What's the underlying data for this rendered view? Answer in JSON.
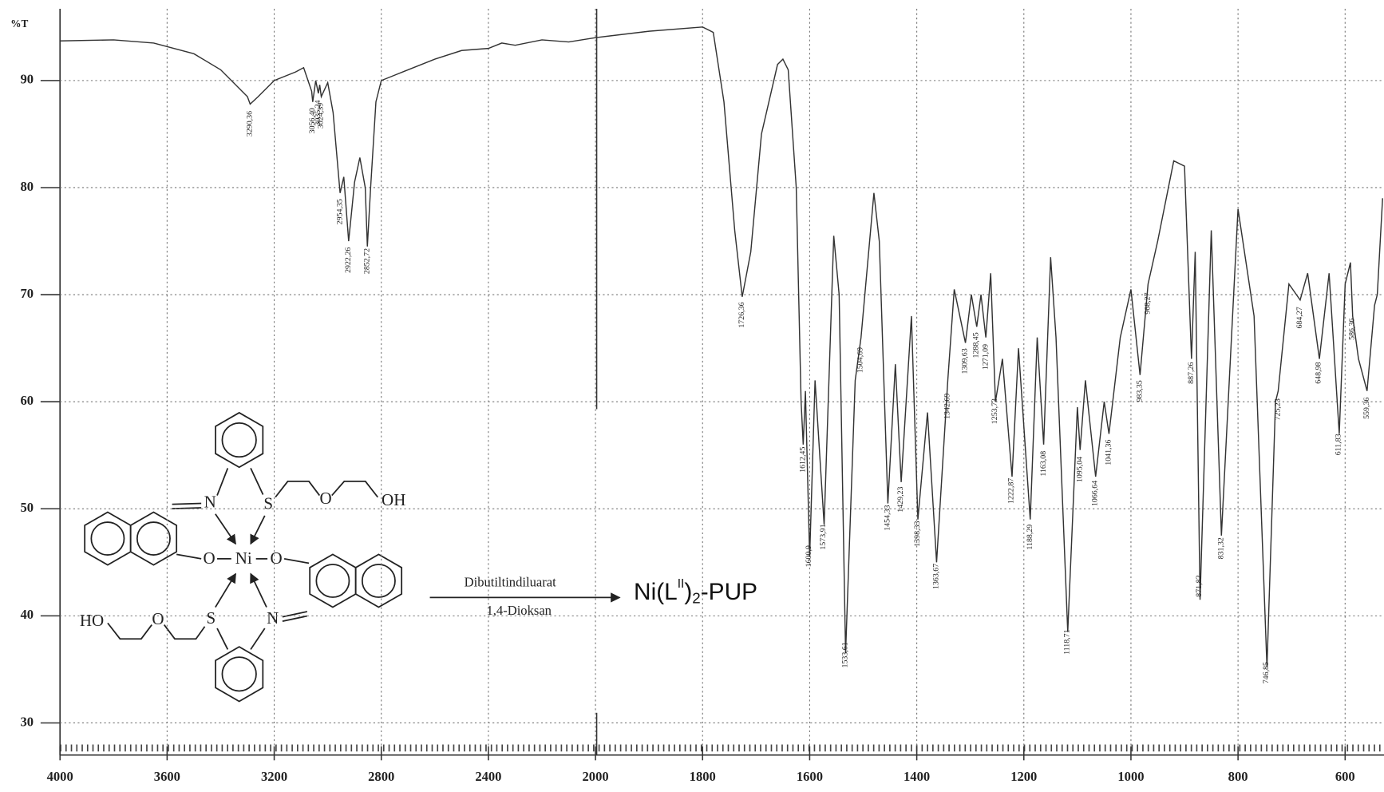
{
  "chart_data": {
    "type": "line",
    "ylabel": "%T",
    "xlim": [
      4000,
      525
    ],
    "xticks": [
      4000,
      3600,
      3200,
      2800,
      2400,
      2000,
      1800,
      1600,
      1400,
      1200,
      1000,
      800,
      600
    ],
    "ylim": [
      27,
      96.7
    ],
    "yticks": [
      30,
      40,
      50,
      60,
      70,
      80,
      90
    ],
    "grid": true,
    "color": "#333333",
    "x": [
      4000,
      3800,
      3650,
      3500,
      3400,
      3300,
      3290,
      3260,
      3200,
      3120,
      3090,
      3060,
      3056,
      3045,
      3035,
      3030,
      3024,
      3000,
      2980,
      2954,
      2940,
      2922,
      2900,
      2880,
      2860,
      2852,
      2840,
      2820,
      2800,
      2750,
      2700,
      2600,
      2500,
      2400,
      2350,
      2300,
      2200,
      2100,
      2000,
      1900,
      1800,
      1780,
      1760,
      1740,
      1726,
      1710,
      1690,
      1660,
      1650,
      1640,
      1625,
      1616,
      1612,
      1608,
      1600,
      1590,
      1573,
      1555,
      1545,
      1533,
      1515,
      1504,
      1480,
      1470,
      1454,
      1440,
      1429,
      1410,
      1398,
      1380,
      1363,
      1342,
      1330,
      1309,
      1298,
      1288,
      1280,
      1271,
      1262,
      1253,
      1240,
      1222,
      1210,
      1188,
      1175,
      1163,
      1150,
      1140,
      1118,
      1100,
      1095,
      1085,
      1066,
      1050,
      1041,
      1020,
      1000,
      983,
      968,
      950,
      920,
      900,
      887,
      880,
      871,
      850,
      831,
      800,
      770,
      746,
      730,
      725,
      705,
      684,
      670,
      648,
      630,
      611,
      600,
      590,
      586,
      575,
      559,
      545,
      540,
      530
    ],
    "values": [
      93.7,
      93.8,
      93.5,
      92.5,
      91,
      88.5,
      87.8,
      88.5,
      90,
      90.8,
      91.2,
      89,
      88,
      90,
      88.8,
      89.6,
      88.5,
      89.8,
      87,
      79.5,
      81,
      75,
      80.5,
      82.8,
      80,
      74.5,
      80,
      88,
      90,
      90.5,
      91,
      92,
      92.8,
      93,
      93.5,
      93.3,
      93.8,
      93.6,
      94,
      94.6,
      95,
      94.5,
      88,
      76,
      69.8,
      74,
      85,
      91.5,
      92,
      91,
      80,
      60,
      56,
      61,
      45.5,
      62,
      48.5,
      75.5,
      70,
      36.5,
      62,
      66,
      79.5,
      75,
      50.5,
      63.5,
      52.5,
      68,
      49,
      59,
      45,
      62,
      70.5,
      65.5,
      70,
      67,
      70,
      66,
      72,
      60,
      64,
      53,
      65,
      49,
      66,
      56,
      73.5,
      66,
      38.5,
      59.5,
      55.5,
      62,
      53,
      60,
      57,
      66,
      70.5,
      62.5,
      71,
      75,
      82.5,
      82,
      64,
      74,
      41.5,
      76,
      47.5,
      78,
      68,
      35.2,
      60,
      61,
      71,
      69.5,
      72,
      64,
      72,
      57,
      71,
      73,
      68,
      64,
      61,
      69,
      70,
      79
    ],
    "peaks": [
      {
        "value": 3290.36,
        "label": "3290,36"
      },
      {
        "value": 3056.4,
        "label": "3056,40"
      },
      {
        "value": 3035.24,
        "label": "3035,24"
      },
      {
        "value": 3024.39,
        "label": "3024,39"
      },
      {
        "value": 2954.35,
        "label": "2954,35"
      },
      {
        "value": 2922.26,
        "label": "2922,26"
      },
      {
        "value": 2852.72,
        "label": "2852,72"
      },
      {
        "value": 1726.36,
        "label": "1726,36"
      },
      {
        "value": 1612.45,
        "label": "1612,45"
      },
      {
        "value": 1600.9,
        "label": "1600,9"
      },
      {
        "value": 1573.91,
        "label": "1573,91"
      },
      {
        "value": 1533.61,
        "label": "1533,61"
      },
      {
        "value": 1504.69,
        "label": "1504,69"
      },
      {
        "value": 1454.33,
        "label": "1454,33"
      },
      {
        "value": 1429.23,
        "label": "1429,23"
      },
      {
        "value": 1398.33,
        "label": "1398,33"
      },
      {
        "value": 1363.67,
        "label": "1363,67"
      },
      {
        "value": 1342.69,
        "label": "1342,69"
      },
      {
        "value": 1309.63,
        "label": "1309,63"
      },
      {
        "value": 1288.45,
        "label": "1288,45"
      },
      {
        "value": 1271.09,
        "label": "1271,09"
      },
      {
        "value": 1253.73,
        "label": "1253,73"
      },
      {
        "value": 1222.87,
        "label": "1222,87"
      },
      {
        "value": 1188.29,
        "label": "1188,29"
      },
      {
        "value": 1163.08,
        "label": "1163,08"
      },
      {
        "value": 1118.71,
        "label": "1118,71"
      },
      {
        "value": 1095.04,
        "label": "1095,04"
      },
      {
        "value": 1066.64,
        "label": "1066,64"
      },
      {
        "value": 1041.36,
        "label": "1041,36"
      },
      {
        "value": 983.35,
        "label": "983,35"
      },
      {
        "value": 968.27,
        "label": "968,27"
      },
      {
        "value": 887.26,
        "label": "887,26"
      },
      {
        "value": 871.82,
        "label": "871,82"
      },
      {
        "value": 831.32,
        "label": "831,32"
      },
      {
        "value": 746.85,
        "label": "746,85"
      },
      {
        "value": 725.23,
        "label": "725,23"
      },
      {
        "value": 684.27,
        "label": "684,27"
      },
      {
        "value": 648.98,
        "label": "648,98"
      },
      {
        "value": 611.83,
        "label": "611,83"
      },
      {
        "value": 586.36,
        "label": "586,36"
      },
      {
        "value": 559.36,
        "label": "559,36"
      }
    ]
  },
  "structure": {
    "atoms": [
      "N",
      "S",
      "O",
      "OH",
      "O",
      "Ni",
      "O",
      "HO",
      "O",
      "S",
      "N"
    ],
    "reagent": "Dibutiltindiluarat",
    "solvent": "1,4-Dioksan",
    "product": {
      "base": "Ni(L",
      "sup": "II",
      "close": ")",
      "sub": "2",
      "tail": "-PUP"
    }
  }
}
